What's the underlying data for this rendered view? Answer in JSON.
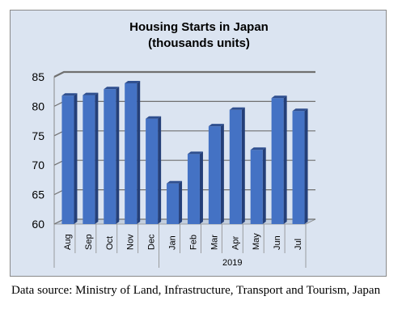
{
  "chart_data": {
    "type": "bar",
    "title": "Housing Starts in Japan",
    "subtitle": "(thousands units)",
    "categories": [
      "Aug",
      "Sep",
      "Oct",
      "Nov",
      "Dec",
      "Jan",
      "Feb",
      "Mar",
      "Apr",
      "May",
      "Jun",
      "Jul"
    ],
    "values": [
      81.8,
      81.9,
      82.9,
      83.9,
      77.9,
      66.9,
      71.9,
      76.6,
      79.4,
      72.6,
      81.4,
      79.2
    ],
    "year_group": {
      "label": "2019",
      "from": "Jan",
      "to": "Jul"
    },
    "ylim": [
      60,
      85
    ],
    "yticks": [
      60,
      65,
      70,
      75,
      80,
      85
    ],
    "grid": true,
    "bar_color": "#4472c4",
    "background_color": "#dbe4f1"
  },
  "caption": "Data source: Ministry of Land, Infrastructure, Transport and Tourism, Japan"
}
